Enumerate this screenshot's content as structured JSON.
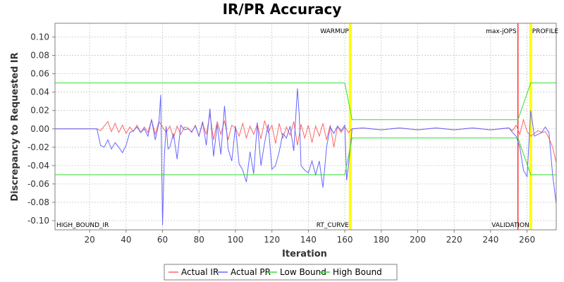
{
  "chart_data": {
    "type": "line",
    "title": "IR/PR Accuracy",
    "xlabel": "Iteration",
    "ylabel": "Discrepancy to Requested IR",
    "xlim": [
      1,
      276
    ],
    "ylim": [
      -0.11,
      0.115
    ],
    "xticks": [
      20,
      40,
      60,
      80,
      100,
      120,
      140,
      160,
      180,
      200,
      220,
      240,
      260
    ],
    "yticks": [
      -0.1,
      -0.08,
      -0.06,
      -0.04,
      -0.02,
      0.0,
      0.02,
      0.04,
      0.06,
      0.08,
      0.1
    ],
    "ytick_labels": [
      "-0.10",
      "-0.08",
      "-0.06",
      "-0.04",
      "-0.02",
      "0.00",
      "0.02",
      "0.04",
      "0.06",
      "0.08",
      "0.10"
    ],
    "grid": true,
    "legend_position": "bottom",
    "series": [
      {
        "name": "Actual IR",
        "color": "#ff6666",
        "x": [
          1,
          24,
          26,
          28,
          30,
          32,
          34,
          36,
          38,
          40,
          42,
          44,
          46,
          48,
          50,
          52,
          54,
          56,
          58,
          60,
          62,
          64,
          66,
          68,
          70,
          72,
          74,
          76,
          78,
          80,
          82,
          84,
          86,
          88,
          90,
          92,
          94,
          96,
          98,
          100,
          102,
          104,
          106,
          108,
          110,
          112,
          114,
          116,
          118,
          120,
          122,
          124,
          126,
          128,
          130,
          132,
          134,
          136,
          138,
          140,
          142,
          144,
          146,
          148,
          150,
          152,
          154,
          156,
          158,
          160,
          162,
          164,
          170,
          180,
          190,
          200,
          210,
          220,
          230,
          240,
          250,
          252,
          254,
          256,
          258,
          260,
          262,
          264,
          266,
          268,
          270,
          272,
          274,
          276
        ],
        "y": [
          0.0,
          0.0,
          -0.002,
          0.003,
          0.008,
          -0.003,
          0.006,
          -0.004,
          0.004,
          -0.005,
          0.002,
          -0.003,
          0.004,
          -0.004,
          0.002,
          -0.004,
          0.01,
          -0.006,
          0.008,
          0.002,
          -0.004,
          0.003,
          -0.01,
          0.003,
          -0.006,
          0.002,
          0.001,
          -0.004,
          0.004,
          -0.008,
          0.006,
          -0.006,
          0.016,
          -0.012,
          0.008,
          -0.006,
          0.009,
          -0.012,
          0.004,
          0.001,
          -0.008,
          0.006,
          -0.01,
          0.003,
          -0.006,
          0.005,
          -0.011,
          0.009,
          -0.004,
          0.004,
          -0.016,
          0.006,
          -0.01,
          0.002,
          -0.007,
          0.008,
          -0.018,
          0.005,
          -0.01,
          0.004,
          -0.015,
          0.003,
          -0.008,
          0.006,
          -0.012,
          0.004,
          -0.02,
          0.003,
          -0.004,
          0.002,
          -0.004,
          0.0,
          0.001,
          -0.001,
          0.001,
          -0.001,
          0.001,
          -0.001,
          0.001,
          -0.001,
          0.001,
          -0.002,
          0.004,
          -0.006,
          0.01,
          -0.003,
          -0.008,
          -0.005,
          -0.002,
          -0.004,
          -0.003,
          -0.01,
          -0.02,
          -0.037
        ]
      },
      {
        "name": "Actual PR",
        "color": "#6666ff",
        "x": [
          1,
          24,
          26,
          28,
          30,
          32,
          34,
          36,
          38,
          40,
          42,
          44,
          46,
          48,
          50,
          52,
          54,
          56,
          58,
          59,
          60,
          61,
          62,
          63,
          64,
          66,
          68,
          70,
          72,
          74,
          76,
          78,
          80,
          82,
          84,
          86,
          88,
          90,
          92,
          94,
          96,
          98,
          100,
          102,
          104,
          106,
          108,
          110,
          112,
          114,
          116,
          118,
          120,
          122,
          124,
          126,
          128,
          130,
          132,
          134,
          135,
          136,
          138,
          140,
          142,
          144,
          146,
          148,
          150,
          152,
          154,
          156,
          158,
          160,
          161,
          162,
          163,
          164,
          170,
          180,
          190,
          200,
          210,
          220,
          230,
          240,
          250,
          252,
          254,
          256,
          258,
          260,
          262,
          264,
          266,
          268,
          270,
          272,
          274,
          276
        ],
        "y": [
          0.0,
          0.0,
          -0.018,
          -0.02,
          -0.012,
          -0.022,
          -0.015,
          -0.02,
          -0.026,
          -0.018,
          -0.004,
          -0.002,
          0.002,
          -0.004,
          0.0,
          -0.008,
          0.01,
          -0.012,
          0.006,
          0.037,
          -0.105,
          -0.03,
          0.003,
          -0.022,
          -0.02,
          -0.005,
          -0.033,
          0.004,
          -0.001,
          0.0,
          -0.003,
          0.003,
          -0.008,
          0.008,
          -0.018,
          0.022,
          -0.03,
          0.005,
          -0.028,
          0.025,
          -0.022,
          -0.035,
          0.003,
          -0.038,
          -0.045,
          -0.058,
          -0.025,
          -0.049,
          0.007,
          -0.04,
          -0.015,
          0.005,
          -0.044,
          -0.04,
          -0.025,
          -0.005,
          -0.01,
          0.003,
          -0.024,
          0.044,
          0.015,
          -0.04,
          -0.045,
          -0.048,
          -0.035,
          -0.05,
          -0.035,
          -0.064,
          -0.02,
          0.002,
          -0.005,
          0.003,
          -0.002,
          0.004,
          -0.056,
          -0.04,
          -0.02,
          0.0,
          0.001,
          -0.001,
          0.001,
          -0.001,
          0.001,
          -0.001,
          0.001,
          -0.001,
          0.001,
          -0.004,
          -0.008,
          -0.02,
          -0.045,
          -0.052,
          0.02,
          -0.008,
          -0.006,
          -0.004,
          0.002,
          -0.004,
          -0.05,
          -0.082
        ]
      },
      {
        "name": "Low Bound",
        "color": "#33dd33",
        "x": [
          1,
          160,
          164,
          255,
          262,
          276
        ],
        "y": [
          -0.05,
          -0.05,
          -0.01,
          -0.01,
          -0.05,
          -0.05
        ]
      },
      {
        "name": "High Bound",
        "color": "#33dd33",
        "x": [
          1,
          160,
          164,
          255,
          262,
          276
        ],
        "y": [
          0.05,
          0.05,
          0.01,
          0.01,
          0.05,
          0.05
        ]
      }
    ],
    "markers": [
      {
        "label": "WARMUP",
        "x": 163,
        "color": "#ffff00"
      },
      {
        "label": "max-jOPS",
        "x": 255,
        "color": "#ff0000"
      },
      {
        "label": "PROFILE",
        "x": 262,
        "color": "#ffff00"
      }
    ],
    "region_labels": [
      {
        "label": "HIGH_BOUND_IR",
        "anchor": "start"
      },
      {
        "label": "RT_CURVE",
        "anchor": "end-warmup"
      },
      {
        "label": "VALIDATION",
        "anchor": "end-validation"
      }
    ]
  }
}
